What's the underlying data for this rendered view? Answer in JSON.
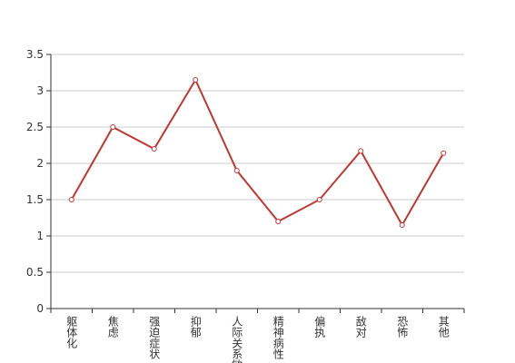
{
  "chart_data": {
    "type": "line",
    "categories": [
      "躯体化",
      "焦虑",
      "强迫症状",
      "抑郁",
      "人际关系敏感",
      "精神病性",
      "偏执",
      "敌对",
      "恐怖",
      "其他"
    ],
    "values": [
      1.5,
      2.5,
      2.2,
      3.15,
      1.9,
      1.2,
      1.5,
      2.17,
      1.15,
      2.14
    ],
    "color": "#c23531",
    "ylim": [
      0,
      3.5
    ],
    "yticks": [
      0,
      0.5,
      1,
      1.5,
      2,
      2.5,
      3,
      3.5
    ],
    "grid": true
  }
}
